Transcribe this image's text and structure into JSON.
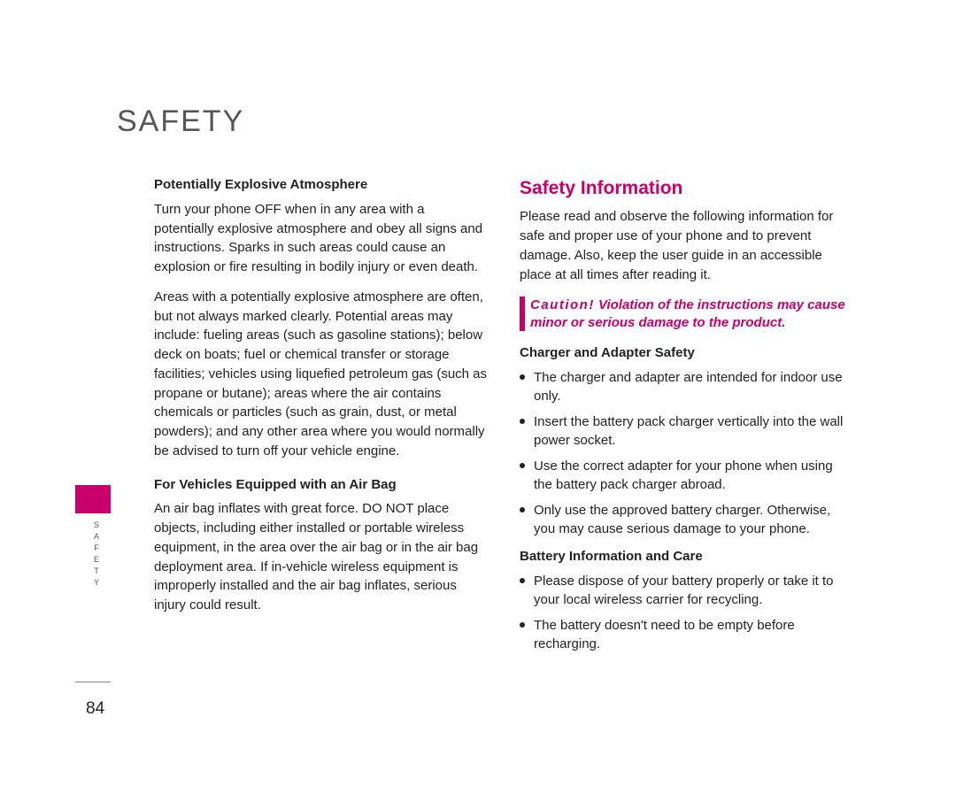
{
  "title": "SAFETY",
  "sidebar": {
    "label": "SAFETY",
    "tab_color": "#c9006b",
    "page_number": "84"
  },
  "left": {
    "h1": "Potentially Explosive Atmosphere",
    "p1": "Turn your phone OFF when in any area with a potentially explosive atmosphere and obey all signs and instructions. Sparks in such areas could cause an explosion or fire resulting in bodily injury or even death.",
    "p2": "Areas with a potentially explosive atmosphere are often, but not always marked clearly. Potential areas may include: fueling areas (such as gasoline stations); below deck on boats; fuel or chemical transfer or storage facilities; vehicles using liquefied petroleum gas (such as propane or butane); areas where the air contains chemicals or particles (such as grain, dust, or metal powders); and any other area where you would normally be advised to turn off your vehicle engine.",
    "h2": "For Vehicles Equipped with an Air Bag",
    "p3": "An air bag inflates with great force. DO NOT place objects, including either installed or portable wireless equipment, in the area over the air bag or in the air bag deployment area. If in-vehicle wireless equipment is improperly installed and the air bag inflates, serious injury could result."
  },
  "right": {
    "section_head": "Safety Information",
    "intro": "Please read and observe the following information for safe and proper use of your phone and to prevent damage. Also, keep the user guide in an accessible place at all times after reading it.",
    "caution_label": "Caution!",
    "caution_text": " Violation of the instructions may cause minor or serious damage to the product.",
    "h1": "Charger and Adapter Safety",
    "bullets1": {
      "0": "The charger and adapter are intended for indoor use only.",
      "1": "Insert the battery pack charger vertically into the wall power socket.",
      "2": "Use the correct adapter for your phone when using the battery pack charger abroad.",
      "3": "Only use the approved battery charger. Otherwise, you may cause serious damage to your phone."
    },
    "h2": "Battery Information and Care",
    "bullets2": {
      "0": "Please dispose of your battery properly or take it to your local wireless carrier for recycling.",
      "1": "The battery doesn't need to be empty before recharging."
    }
  }
}
